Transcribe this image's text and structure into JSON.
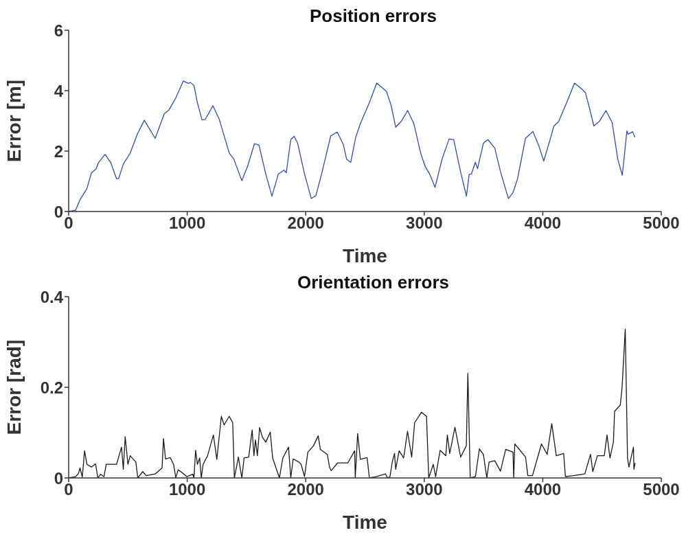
{
  "chart_data": [
    {
      "type": "line",
      "title": "Position errors",
      "xlabel": "Time",
      "ylabel": "Error [m]",
      "xlim": [
        0,
        5000
      ],
      "xticks": [
        0,
        1000,
        2000,
        3000,
        4000,
        5000
      ],
      "ylim": [
        0,
        6
      ],
      "yticks": [
        0,
        2,
        4,
        6
      ],
      "series": [
        {
          "color": "#2f4fa8",
          "x": [
            0,
            58,
            96,
            154,
            192,
            231,
            250,
            307,
            356,
            404,
            423,
            461,
            519,
            577,
            638,
            730,
            807,
            846,
            904,
            967,
            1009,
            1028,
            1057,
            1086,
            1125,
            1153,
            1217,
            1269,
            1355,
            1394,
            1461,
            1509,
            1567,
            1605,
            1663,
            1715,
            1769,
            1817,
            1836,
            1874,
            1903,
            1932,
            1990,
            2047,
            2086,
            2134,
            2211,
            2265,
            2317,
            2345,
            2380,
            2422,
            2461,
            2537,
            2599,
            2653,
            2682,
            2720,
            2759,
            2807,
            2860,
            2912,
            2970,
            3008,
            3047,
            3091,
            3153,
            3210,
            3249,
            3306,
            3356,
            3379,
            3398,
            3431,
            3450,
            3499,
            3537,
            3595,
            3643,
            3710,
            3749,
            3787,
            3854,
            3917,
            3970,
            4008,
            4056,
            4094,
            4133,
            4210,
            4268,
            4325,
            4360,
            4393,
            4431,
            4479,
            4533,
            4585,
            4633,
            4671,
            4710,
            4719,
            4758,
            4777
          ],
          "values": [
            0,
            0.04,
            0.39,
            0.76,
            1.28,
            1.41,
            1.61,
            1.89,
            1.61,
            1.08,
            1.1,
            1.57,
            1.93,
            2.54,
            3.02,
            2.42,
            3.24,
            3.36,
            3.76,
            4.32,
            4.24,
            4.27,
            4.17,
            3.6,
            3.03,
            3.05,
            3.5,
            3.07,
            1.93,
            1.73,
            1.02,
            1.49,
            2.24,
            2.2,
            1.24,
            0.51,
            1.24,
            1.37,
            1.28,
            2.38,
            2.49,
            2.26,
            1.24,
            0.43,
            0.53,
            1.24,
            2.5,
            2.63,
            2.22,
            1.73,
            1.63,
            2.46,
            2.91,
            3.6,
            4.25,
            4.07,
            3.97,
            3.52,
            2.79,
            2.99,
            3.34,
            2.91,
            1.93,
            1.49,
            1.23,
            0.8,
            1.77,
            2.4,
            2.37,
            1.32,
            0.51,
            1.23,
            1.24,
            1.63,
            1.42,
            2.26,
            2.38,
            2.1,
            1.32,
            0.43,
            0.63,
            1.08,
            2.42,
            2.65,
            2.14,
            1.67,
            2.3,
            2.83,
            2.97,
            3.68,
            4.25,
            4.07,
            3.93,
            3.44,
            2.83,
            2.99,
            3.34,
            2.95,
            1.73,
            1.2,
            2.67,
            2.56,
            2.64,
            2.46
          ]
        }
      ]
    },
    {
      "type": "line",
      "title": "Orientation errors",
      "xlabel": "Time",
      "ylabel": "Error [rad]",
      "xlim": [
        0,
        5000
      ],
      "xticks": [
        0,
        1000,
        2000,
        3000,
        4000,
        5000
      ],
      "ylim": [
        0,
        0.4
      ],
      "yticks": [
        0,
        0.2,
        0.4
      ],
      "series": [
        {
          "color": "#1a1a1a",
          "x": [
            0,
            58,
            81,
            96,
            115,
            134,
            154,
            192,
            227,
            246,
            269,
            298,
            317,
            404,
            446,
            461,
            477,
            500,
            519,
            567,
            583,
            625,
            654,
            731,
            788,
            800,
            817,
            856,
            885,
            904,
            923,
            961,
            996,
            1048,
            1057,
            1071,
            1086,
            1105,
            1119,
            1134,
            1172,
            1221,
            1250,
            1288,
            1311,
            1355,
            1384,
            1398,
            1432,
            1461,
            1480,
            1519,
            1548,
            1563,
            1576,
            1592,
            1611,
            1634,
            1663,
            1701,
            1721,
            1778,
            1807,
            1855,
            1874,
            1894,
            1942,
            1961,
            1990,
            2018,
            2066,
            2105,
            2124,
            2182,
            2201,
            2215,
            2268,
            2355,
            2413,
            2418,
            2438,
            2461,
            2518,
            2537,
            2595,
            2672,
            2691,
            2711,
            2730,
            2749,
            2759,
            2788,
            2826,
            2859,
            2894,
            2919,
            2976,
            3019,
            3038,
            3076,
            3096,
            3134,
            3182,
            3195,
            3215,
            3259,
            3307,
            3355,
            3368,
            3388,
            3432,
            3465,
            3499,
            3528,
            3547,
            3595,
            3643,
            3687,
            3749,
            3755,
            3764,
            3855,
            3874,
            3913,
            3989,
            4037,
            4076,
            4114,
            4176,
            4191,
            4259,
            4355,
            4403,
            4422,
            4461,
            4519,
            4542,
            4567,
            4596,
            4606,
            4654,
            4669,
            4696,
            4715,
            4727,
            4765,
            4769,
            4779
          ],
          "values": [
            0,
            0.003,
            0.009,
            0.022,
            0.002,
            0.06,
            0.03,
            0.024,
            0.031,
            0,
            0.008,
            0.003,
            0.03,
            0.03,
            0.068,
            0.019,
            0.091,
            0.03,
            0.049,
            0.035,
            0,
            0.014,
            0.005,
            0.009,
            0.022,
            0.087,
            0.042,
            0.045,
            0.03,
            0,
            0.018,
            0.011,
            0.003,
            0.008,
            0,
            0.061,
            0.03,
            0.044,
            0,
            0.03,
            0.049,
            0.095,
            0.041,
            0.136,
            0.117,
            0.136,
            0.122,
            0,
            0.046,
            0,
            0.044,
            0.046,
            0.106,
            0.049,
            0.084,
            0.049,
            0.111,
            0.09,
            0.079,
            0.101,
            0.044,
            0,
            0.044,
            0.068,
            0,
            0.042,
            0.035,
            0.03,
            0.003,
            0.057,
            0.071,
            0.093,
            0.063,
            0.052,
            0.024,
            0.016,
            0.033,
            0.033,
            0.06,
            0,
            0.098,
            0.041,
            0.045,
            0,
            0.003,
            0.009,
            0,
            0.003,
            0.035,
            0.054,
            0.019,
            0.06,
            0.044,
            0.103,
            0.046,
            0.122,
            0.145,
            0.136,
            0,
            0.03,
            0.003,
            0.061,
            0.049,
            0.095,
            0.054,
            0.112,
            0.046,
            0.071,
            0.231,
            0,
            0.003,
            0.064,
            0.052,
            0,
            0.035,
            0.038,
            0.015,
            0.063,
            0.057,
            0,
            0.075,
            0.046,
            0.005,
            0.005,
            0.075,
            0.052,
            0.12,
            0.049,
            0.054,
            0.003,
            0.005,
            0.009,
            0.052,
            0.014,
            0.049,
            0.049,
            0.095,
            0.044,
            0.079,
            0.147,
            0.161,
            0.199,
            0.328,
            0.044,
            0.024,
            0.068,
            0.019,
            0.033
          ]
        }
      ]
    }
  ]
}
